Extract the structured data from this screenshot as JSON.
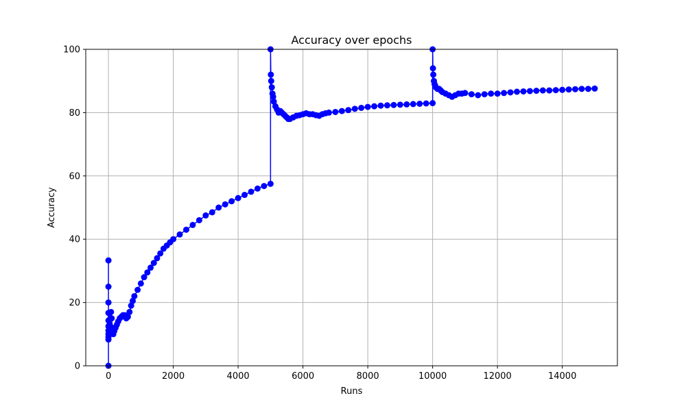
{
  "chart_data": {
    "type": "line",
    "title": "Accuracy over epochs",
    "xlabel": "Runs",
    "ylabel": "Accuracy",
    "xlim": [
      -700,
      15700
    ],
    "ylim": [
      0,
      100
    ],
    "x_ticks": [
      0,
      2000,
      4000,
      6000,
      8000,
      10000,
      12000,
      14000
    ],
    "y_ticks": [
      0,
      20,
      40,
      60,
      80,
      100
    ],
    "grid": true,
    "legend": "none",
    "marker": "circle",
    "line_color": "#0000ff",
    "grid_color": "#b0b0b0",
    "series": [
      {
        "points": [
          [
            0,
            0
          ],
          [
            0,
            33.3
          ],
          [
            0,
            25
          ],
          [
            0,
            20
          ],
          [
            0,
            16.7
          ],
          [
            0,
            14.3
          ],
          [
            0,
            12.5
          ],
          [
            0,
            11.1
          ],
          [
            0,
            10
          ],
          [
            0,
            9.1
          ],
          [
            0,
            8.3
          ],
          [
            20,
            10
          ],
          [
            40,
            13
          ],
          [
            60,
            15
          ],
          [
            80,
            17
          ],
          [
            100,
            15
          ],
          [
            120,
            12
          ],
          [
            150,
            10
          ],
          [
            180,
            11
          ],
          [
            220,
            12
          ],
          [
            260,
            13
          ],
          [
            300,
            14
          ],
          [
            350,
            15
          ],
          [
            400,
            15.5
          ],
          [
            450,
            16
          ],
          [
            500,
            16
          ],
          [
            550,
            15
          ],
          [
            600,
            15.5
          ],
          [
            650,
            17
          ],
          [
            700,
            19
          ],
          [
            750,
            20.5
          ],
          [
            800,
            22
          ],
          [
            900,
            24
          ],
          [
            1000,
            26
          ],
          [
            1100,
            28
          ],
          [
            1200,
            29.5
          ],
          [
            1300,
            31
          ],
          [
            1400,
            32.5
          ],
          [
            1500,
            34
          ],
          [
            1600,
            35.5
          ],
          [
            1700,
            37
          ],
          [
            1800,
            38
          ],
          [
            1900,
            39
          ],
          [
            2000,
            40
          ],
          [
            2200,
            41.5
          ],
          [
            2400,
            43
          ],
          [
            2600,
            44.5
          ],
          [
            2800,
            46
          ],
          [
            3000,
            47.5
          ],
          [
            3200,
            48.5
          ],
          [
            3400,
            50
          ],
          [
            3600,
            51
          ],
          [
            3800,
            52
          ],
          [
            4000,
            53
          ],
          [
            4200,
            54
          ],
          [
            4400,
            55
          ],
          [
            4600,
            56
          ],
          [
            4800,
            56.8
          ],
          [
            5000,
            57.5
          ],
          [
            5000,
            100
          ],
          [
            5010,
            92
          ],
          [
            5020,
            90
          ],
          [
            5040,
            88
          ],
          [
            5060,
            86
          ],
          [
            5080,
            85
          ],
          [
            5100,
            83.5
          ],
          [
            5150,
            82
          ],
          [
            5200,
            81
          ],
          [
            5250,
            80
          ],
          [
            5300,
            80.5
          ],
          [
            5350,
            80
          ],
          [
            5400,
            79.5
          ],
          [
            5450,
            79
          ],
          [
            5500,
            78.5
          ],
          [
            5550,
            78
          ],
          [
            5600,
            78
          ],
          [
            5700,
            78.5
          ],
          [
            5800,
            79
          ],
          [
            5900,
            79.2
          ],
          [
            6000,
            79.5
          ],
          [
            6100,
            79.8
          ],
          [
            6200,
            79.5
          ],
          [
            6300,
            79.5
          ],
          [
            6400,
            79.2
          ],
          [
            6500,
            79
          ],
          [
            6600,
            79.5
          ],
          [
            6700,
            79.8
          ],
          [
            6800,
            80
          ],
          [
            7000,
            80.2
          ],
          [
            7200,
            80.5
          ],
          [
            7400,
            80.8
          ],
          [
            7600,
            81.2
          ],
          [
            7800,
            81.5
          ],
          [
            8000,
            81.8
          ],
          [
            8200,
            82
          ],
          [
            8400,
            82.2
          ],
          [
            8600,
            82.3
          ],
          [
            8800,
            82.4
          ],
          [
            9000,
            82.5
          ],
          [
            9200,
            82.6
          ],
          [
            9400,
            82.7
          ],
          [
            9600,
            82.8
          ],
          [
            9800,
            82.9
          ],
          [
            10000,
            83
          ],
          [
            10000,
            100
          ],
          [
            10010,
            94
          ],
          [
            10020,
            92
          ],
          [
            10040,
            90
          ],
          [
            10060,
            89
          ],
          [
            10080,
            88.5
          ],
          [
            10100,
            88
          ],
          [
            10150,
            87.5
          ],
          [
            10200,
            87.5
          ],
          [
            10250,
            87
          ],
          [
            10300,
            86.5
          ],
          [
            10400,
            86
          ],
          [
            10500,
            85.5
          ],
          [
            10600,
            85
          ],
          [
            10700,
            85.5
          ],
          [
            10800,
            86
          ],
          [
            10900,
            86
          ],
          [
            11000,
            86.2
          ],
          [
            11200,
            85.8
          ],
          [
            11400,
            85.5
          ],
          [
            11600,
            85.8
          ],
          [
            11800,
            86
          ],
          [
            12000,
            86
          ],
          [
            12200,
            86.2
          ],
          [
            12400,
            86.4
          ],
          [
            12600,
            86.6
          ],
          [
            12800,
            86.7
          ],
          [
            13000,
            86.8
          ],
          [
            13200,
            86.9
          ],
          [
            13400,
            87
          ],
          [
            13600,
            87
          ],
          [
            13800,
            87.1
          ],
          [
            14000,
            87.2
          ],
          [
            14200,
            87.3
          ],
          [
            14400,
            87.4
          ],
          [
            14600,
            87.5
          ],
          [
            14800,
            87.5
          ],
          [
            15000,
            87.6
          ]
        ]
      }
    ]
  }
}
